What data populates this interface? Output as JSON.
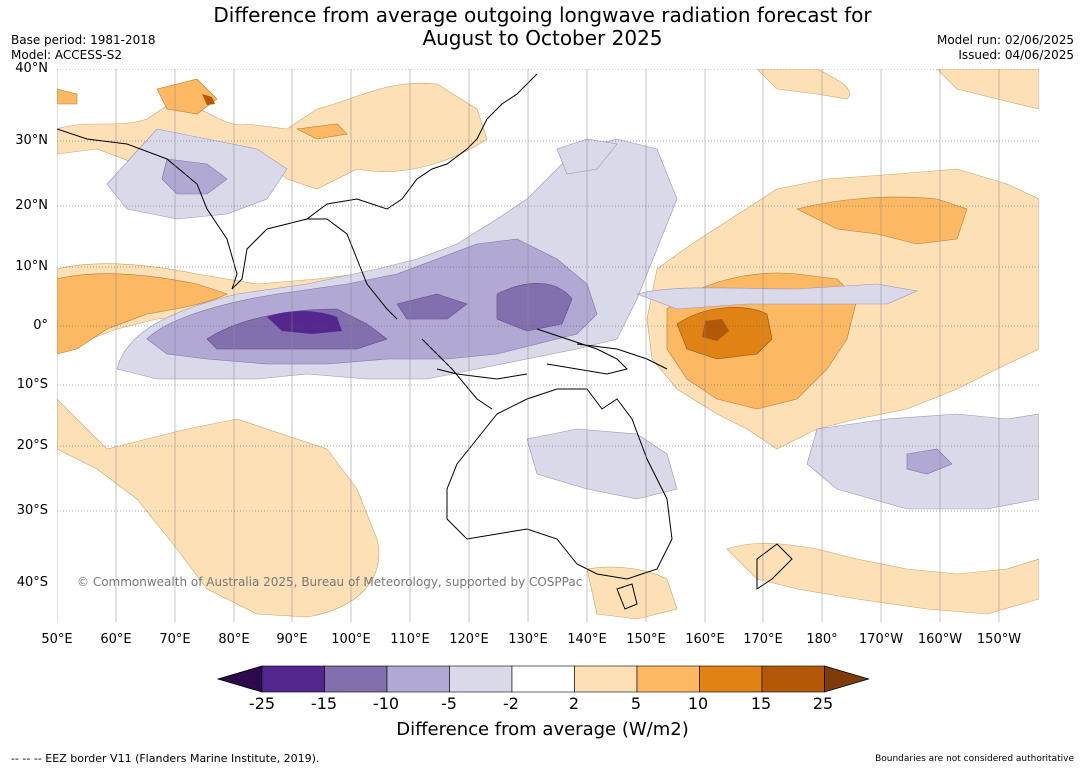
{
  "title": {
    "line1": "Difference from average outgoing longwave radiation forecast for",
    "line2": "August to October 2025"
  },
  "meta_left": {
    "base_period": "Base period: 1981-2018",
    "model": "Model: ACCESS-S2"
  },
  "meta_right": {
    "model_run": "Model run: 02/06/2025",
    "issued": "Issued: 04/06/2025"
  },
  "map": {
    "lat_labels": [
      "40°N",
      "30°N",
      "20°N",
      "10°N",
      "0°",
      "10°S",
      "20°S",
      "30°S",
      "40°S"
    ],
    "lon_labels": [
      "50°E",
      "60°E",
      "70°E",
      "80°E",
      "90°E",
      "100°E",
      "110°E",
      "120°E",
      "130°E",
      "140°E",
      "150°E",
      "160°E",
      "170°E",
      "180°",
      "170°W",
      "160°W",
      "150°W"
    ],
    "copyright": "© Commonwealth of Australia 2025, Bureau of Meteorology, supported by COSPPac"
  },
  "legend": {
    "title": "Difference from average (W/m2)",
    "ticks": [
      "-25",
      "-15",
      "-10",
      "-5",
      "-2",
      "2",
      "5",
      "10",
      "15",
      "25"
    ],
    "colors": [
      "#2d0a4e",
      "#54278f",
      "#8170ad",
      "#b1a8d3",
      "#d9d9ea",
      "#ffffff",
      "#fee0b6",
      "#fdb863",
      "#e08214",
      "#b35806",
      "#7f3b08"
    ]
  },
  "footer": {
    "eez": "--  --  -- EEZ border V11 (Flanders Marine Institute, 2019).",
    "boundaries": "Boundaries are not considered authoritative"
  }
}
